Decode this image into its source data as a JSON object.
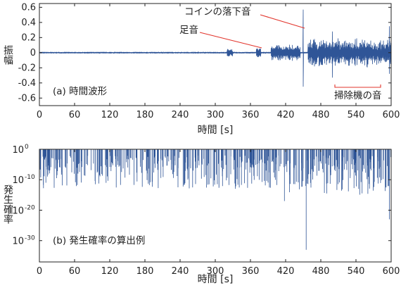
{
  "chart_data": [
    {
      "type": "line",
      "panel_label": "(a) 時間波形",
      "xlabel": "時間 [s]",
      "ylabel": "振幅",
      "xlim": [
        0,
        600
      ],
      "ylim": [
        -0.7,
        0.65
      ],
      "xticks": [
        0,
        60,
        120,
        180,
        240,
        300,
        360,
        420,
        480,
        540,
        600
      ],
      "yticks": [
        "0.6",
        "0.4",
        "0.2",
        "0",
        "-0.2",
        "-0.4",
        "-0.6"
      ],
      "ytick_values": [
        0.6,
        0.4,
        0.2,
        0,
        -0.2,
        -0.4,
        -0.6
      ],
      "grid": false,
      "line_color": "#2f5597",
      "annotation_color": "#e2342b",
      "annotations": [
        {
          "text": "コインの落下音",
          "x": 450,
          "y": 0.55
        },
        {
          "text": "足音",
          "x": 375,
          "y": 0.05
        },
        {
          "text": "掃除機の音",
          "x_range": [
            500,
            580
          ],
          "y": -0.45
        }
      ],
      "features": [
        {
          "x": 450,
          "peak_max": 0.57,
          "peak_min": -0.45
        },
        {
          "x": 500,
          "peak_max": 0.28,
          "peak_min": -0.33
        },
        {
          "x": 597,
          "peak_max": 0.35,
          "peak_min": -0.28
        }
      ],
      "baseline_amplitude": 0.01
    },
    {
      "type": "line",
      "panel_label": "(b) 発生確率の算出例",
      "xlabel": "時間 [s]",
      "ylabel": "発生確率",
      "xlim": [
        0,
        600
      ],
      "ylim_exponent": [
        -37,
        0
      ],
      "yscale": "log",
      "xticks": [
        0,
        60,
        120,
        180,
        240,
        300,
        360,
        420,
        480,
        540,
        600
      ],
      "yticks": [
        {
          "base": "10",
          "exp": "0",
          "value_exp": 0
        },
        {
          "base": "10",
          "exp": "-10",
          "value_exp": -10
        },
        {
          "base": "10",
          "exp": "-20",
          "value_exp": -20
        },
        {
          "base": "10",
          "exp": "-30",
          "value_exp": -30
        }
      ],
      "grid": false,
      "line_color": "#2f5597",
      "typical_dip_exp": [
        -2,
        -10
      ],
      "features": [
        {
          "x": 455,
          "min_exp": -33
        },
        {
          "x": 418,
          "min_exp": -17
        },
        {
          "x": 597,
          "min_exp": -23
        }
      ]
    }
  ]
}
